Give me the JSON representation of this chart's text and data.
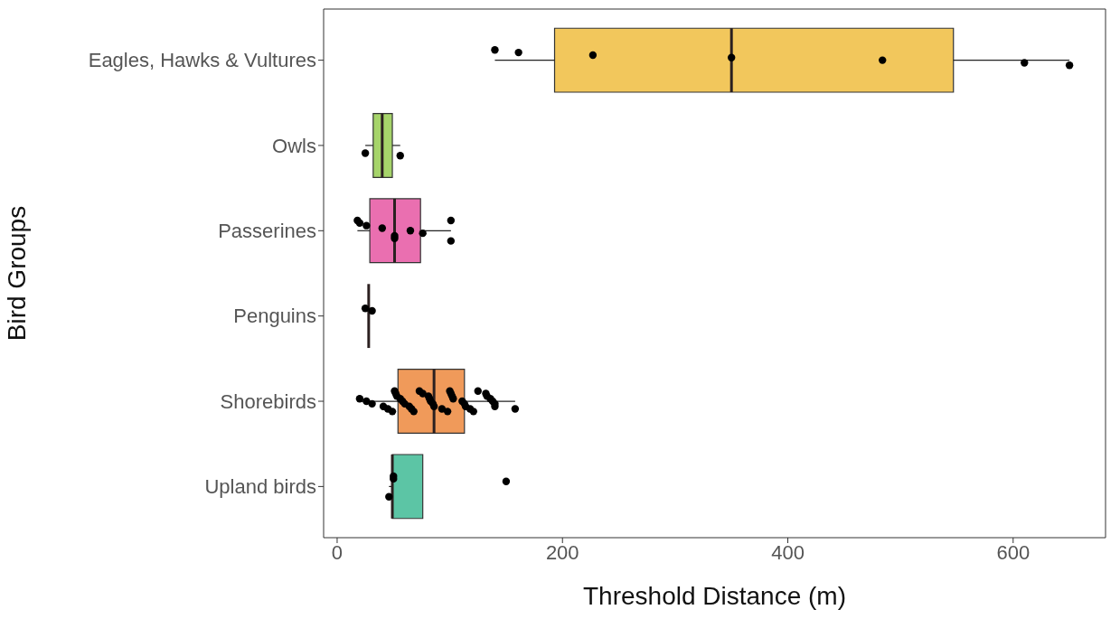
{
  "chart_data": {
    "type": "box",
    "orientation": "horizontal",
    "xlabel": "Threshold Distance (m)",
    "ylabel": "Bird Groups",
    "categories": [
      "Eagles, Hawks & Vultures",
      "Owls",
      "Passerines",
      "Penguins",
      "Shorebirds",
      "Upland birds"
    ],
    "boxes": [
      {
        "low": 140,
        "q1": 193,
        "median": 350,
        "q3": 547,
        "high": 650
      },
      {
        "low": 25,
        "q1": 32,
        "median": 40,
        "q3": 49,
        "high": 56
      },
      {
        "low": 18,
        "q1": 29,
        "median": 51,
        "q3": 74,
        "high": 101
      },
      {
        "low": 28,
        "q1": 28,
        "median": 28,
        "q3": 28,
        "high": 28
      },
      {
        "low": 20,
        "q1": 54,
        "median": 86,
        "q3": 113,
        "high": 158
      },
      {
        "low": 46,
        "q1": 49,
        "median": 49,
        "q3": 76,
        "high": 76
      }
    ],
    "colors": [
      "#f2c75c",
      "#a6d46a",
      "#ea6fb0",
      "#2b2020",
      "#f09a5a",
      "#5cc5a5"
    ],
    "series": [
      {
        "type": "scatter",
        "color": "#000000",
        "x": [
          "Eagles, Hawks & Vultures",
          "Eagles, Hawks & Vultures",
          "Eagles, Hawks & Vultures",
          "Eagles, Hawks & Vultures",
          "Eagles, Hawks & Vultures",
          "Eagles, Hawks & Vultures",
          "Eagles, Hawks & Vultures",
          "Owls",
          "Owls",
          "Passerines",
          "Passerines",
          "Passerines",
          "Passerines",
          "Passerines",
          "Passerines",
          "Passerines",
          "Passerines",
          "Passerines",
          "Passerines",
          "Penguins",
          "Penguins",
          "Shorebirds",
          "Shorebirds",
          "Shorebirds",
          "Shorebirds",
          "Shorebirds",
          "Shorebirds",
          "Shorebirds",
          "Shorebirds",
          "Shorebirds",
          "Shorebirds",
          "Shorebirds",
          "Shorebirds",
          "Shorebirds",
          "Shorebirds",
          "Shorebirds",
          "Shorebirds",
          "Shorebirds",
          "Shorebirds",
          "Shorebirds",
          "Shorebirds",
          "Shorebirds",
          "Shorebirds",
          "Shorebirds",
          "Shorebirds",
          "Shorebirds",
          "Shorebirds",
          "Shorebirds",
          "Shorebirds",
          "Shorebirds",
          "Shorebirds",
          "Shorebirds",
          "Shorebirds",
          "Shorebirds",
          "Shorebirds",
          "Shorebirds",
          "Shorebirds",
          "Shorebirds",
          "Shorebirds",
          "Shorebirds",
          "Shorebirds",
          "Shorebirds",
          "Upland birds",
          "Upland birds",
          "Upland birds",
          "Upland birds"
        ],
        "values": [
          140,
          161,
          227,
          350,
          484,
          610,
          650,
          25,
          56,
          18,
          20,
          26,
          40,
          65,
          76,
          51,
          51,
          101,
          101,
          25,
          31,
          20,
          26,
          31,
          41,
          45,
          49,
          51,
          52,
          53,
          56,
          58,
          60,
          64,
          66,
          68,
          73,
          76,
          81,
          82,
          83,
          85,
          86,
          93,
          98,
          100,
          101,
          102,
          103,
          111,
          113,
          114,
          118,
          121,
          125,
          132,
          133,
          136,
          138,
          140,
          140,
          158,
          46,
          50,
          50,
          150
        ]
      }
    ],
    "xlim": [
      -12,
      682
    ],
    "xticks": [
      0,
      200,
      400,
      600
    ],
    "marker": "circle",
    "grid": false,
    "legend": false
  }
}
